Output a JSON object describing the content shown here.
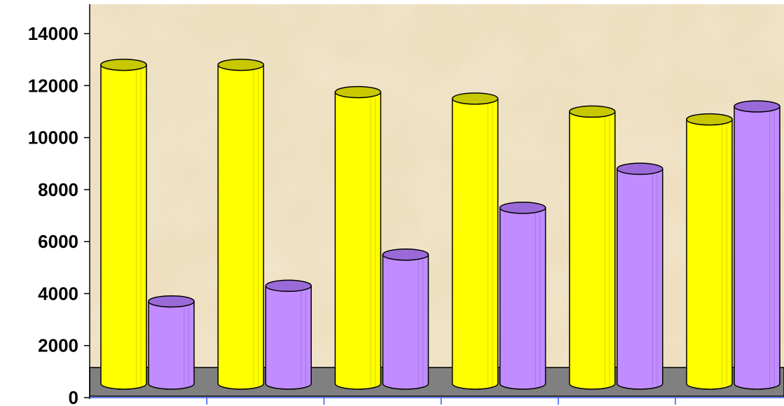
{
  "chart_data": {
    "type": "bar",
    "categories": [
      "",
      "",
      "",
      "",
      "",
      ""
    ],
    "series": [
      {
        "values": [
          12800,
          12800,
          11750,
          11500,
          11000,
          10700
        ]
      },
      {
        "values": [
          3700,
          4300,
          5500,
          7300,
          8800,
          11200
        ]
      }
    ],
    "ylim": [
      0,
      14000
    ],
    "yticks": [
      0,
      2000,
      4000,
      6000,
      8000,
      10000,
      12000,
      14000
    ],
    "title": "",
    "xlabel": "",
    "ylabel": "",
    "grid": false,
    "style": "3d-cylinder",
    "colors": {
      "series": [
        "#ffff00",
        "#c08cff"
      ],
      "series_dark": [
        "#c8c800",
        "#9a6ad8"
      ],
      "plot_background": "#eedfc0",
      "floor": "#808080",
      "x_axis_ticks": "#3355ff"
    }
  }
}
